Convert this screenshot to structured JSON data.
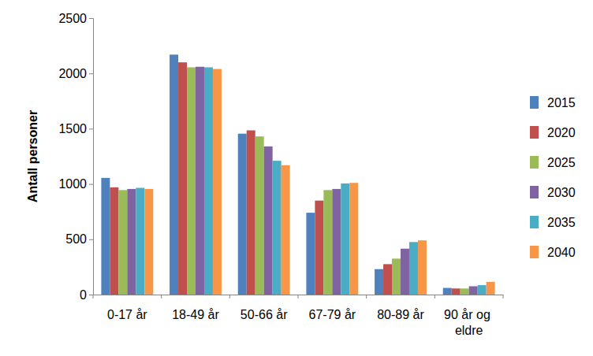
{
  "chart_data": {
    "type": "bar",
    "y_label": "Antall personer",
    "categories": [
      "0-17 år",
      "18-49 år",
      "50-66 år",
      "67-79 år",
      "80-89 år",
      "90 år og eldre"
    ],
    "series": [
      {
        "name": "2015",
        "color": "#4f81bd",
        "values": [
          1055,
          2170,
          1455,
          740,
          230,
          60
        ]
      },
      {
        "name": "2020",
        "color": "#c0504d",
        "values": [
          970,
          2100,
          1485,
          850,
          275,
          55
        ]
      },
      {
        "name": "2025",
        "color": "#9bbb59",
        "values": [
          945,
          2055,
          1430,
          945,
          325,
          55
        ]
      },
      {
        "name": "2030",
        "color": "#8064a2",
        "values": [
          955,
          2060,
          1340,
          955,
          415,
          75
        ]
      },
      {
        "name": "2035",
        "color": "#4bacc6",
        "values": [
          965,
          2055,
          1210,
          1005,
          475,
          85
        ]
      },
      {
        "name": "2040",
        "color": "#f79646",
        "values": [
          955,
          2040,
          1170,
          1010,
          490,
          115
        ]
      }
    ],
    "ylim": [
      0,
      2500
    ],
    "yticks": [
      0,
      500,
      1000,
      1500,
      2000,
      2500
    ],
    "grid": false,
    "legend": "right"
  }
}
